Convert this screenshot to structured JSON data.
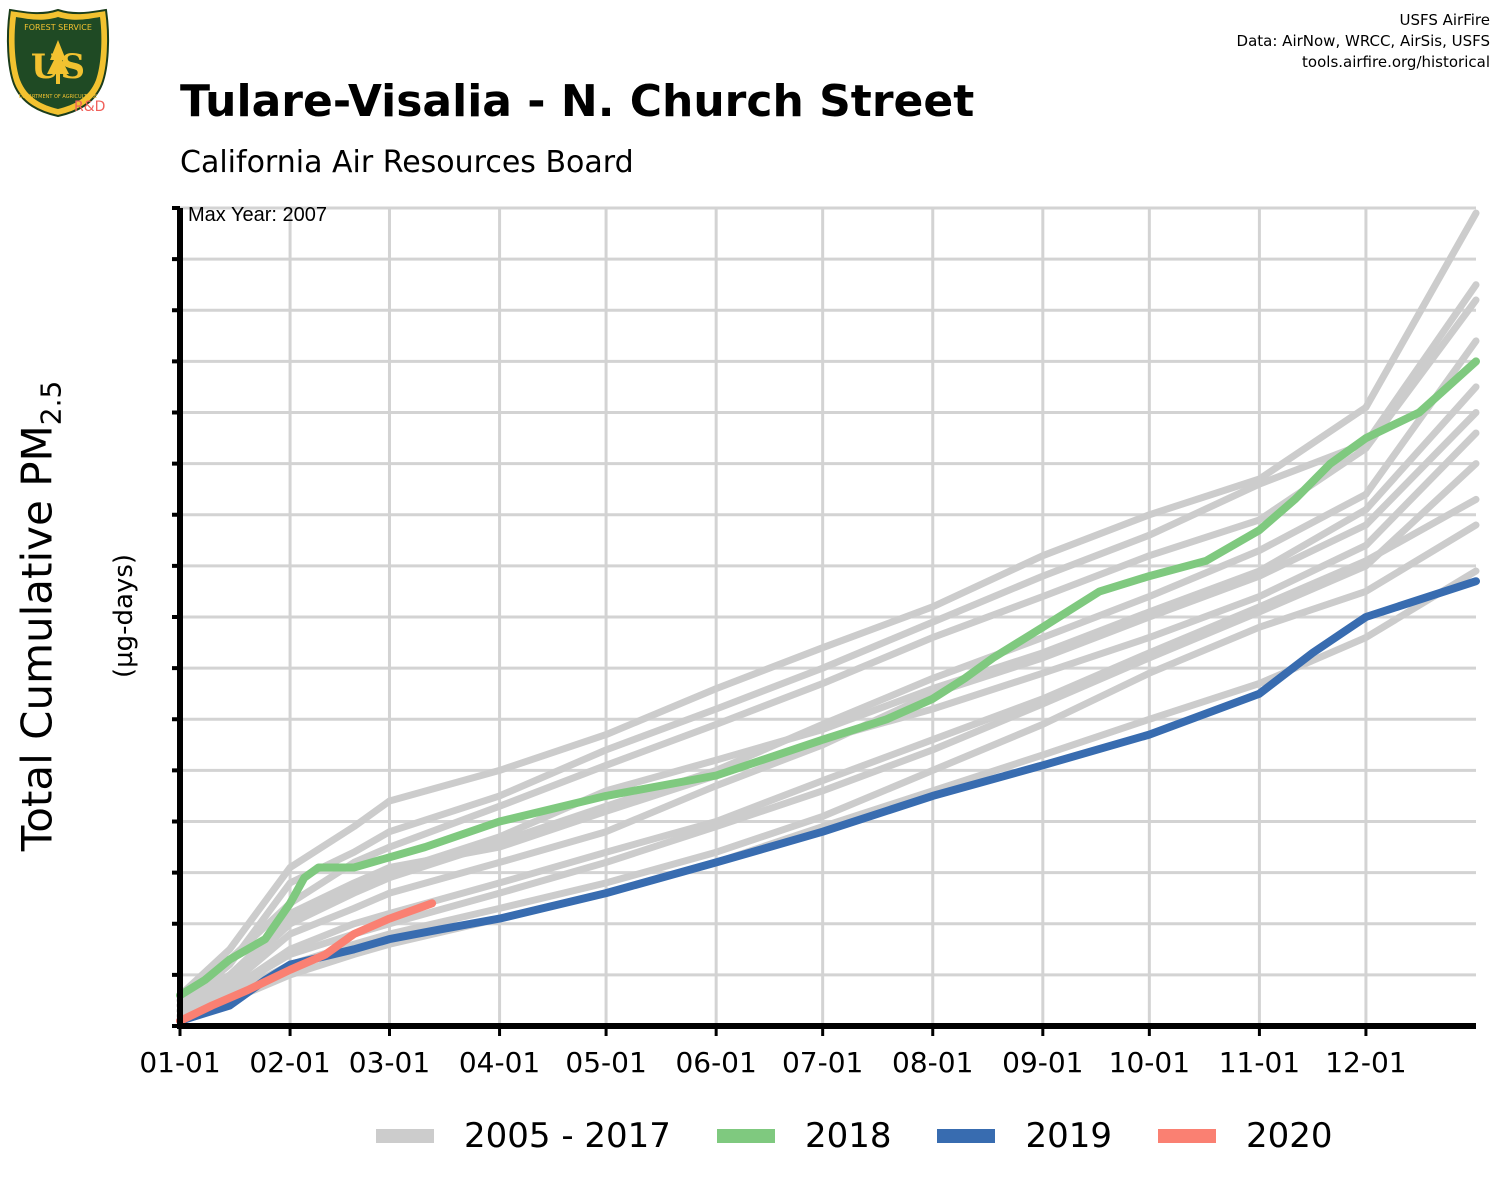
{
  "header": {
    "title": "Tulare-Visalia - N. Church Street",
    "subtitle": "California Air Resources Board",
    "credits": [
      "USFS AirFire",
      "Data: AirNow, WRCC, AirSis, USFS",
      "tools.airfire.org/historical"
    ],
    "logo": {
      "icon": "forest-service-shield-icon",
      "text_top": "FOREST SERVICE",
      "text_mid": "US",
      "text_bottom": "DEPARTMENT OF AGRICULTURE",
      "badge": "R&D"
    }
  },
  "colors": {
    "history": "#cccccc",
    "y2018": "#7fc97f",
    "y2019": "#386cb0",
    "y2020": "#fa8072",
    "grid": "#d3d3d3",
    "axis": "#000000"
  },
  "chart_data": {
    "type": "line",
    "title": "Tulare-Visalia - N. Church Street",
    "subtitle": "California Air Resources Board",
    "ylabel": "Total Cumulative PM",
    "ylabel_sub": "2.5",
    "yunit": "(µg-days)",
    "annotation": "Max Year: 2007",
    "x_ticks": [
      "01-01",
      "02-01",
      "03-01",
      "04-01",
      "05-01",
      "06-01",
      "07-01",
      "08-01",
      "09-01",
      "10-01",
      "11-01",
      "12-01"
    ],
    "x_tick_days": [
      1,
      32,
      60,
      91,
      121,
      152,
      182,
      213,
      244,
      274,
      305,
      335
    ],
    "xlim": [
      1,
      366
    ],
    "ylim": [
      0,
      16
    ],
    "y_tick_count": 17,
    "y_tick_labels_shown": false,
    "grid": true,
    "legend_position": "bottom",
    "legend": [
      "2005 - 2017",
      "2018",
      "2019",
      "2020"
    ],
    "series": [
      {
        "name": "2005 - 2017",
        "group": "history",
        "x": [
          1,
          15,
          32,
          50,
          60,
          91,
          121,
          152,
          182,
          213,
          244,
          274,
          305,
          335,
          366
        ],
        "y": [
          0.6,
          1.5,
          3.1,
          3.9,
          4.4,
          5.0,
          5.7,
          6.6,
          7.4,
          8.2,
          9.2,
          10.0,
          10.7,
          12.1,
          15.9
        ]
      },
      {
        "name": "2005 - 2017",
        "group": "history",
        "x": [
          1,
          15,
          32,
          50,
          60,
          91,
          121,
          152,
          182,
          213,
          244,
          274,
          305,
          335,
          366
        ],
        "y": [
          0.4,
          1.2,
          2.8,
          3.4,
          3.8,
          4.5,
          5.4,
          6.2,
          7.0,
          7.9,
          8.8,
          9.6,
          10.6,
          11.4,
          14.5
        ]
      },
      {
        "name": "2005 - 2017",
        "group": "history",
        "x": [
          1,
          15,
          32,
          50,
          60,
          91,
          121,
          152,
          182,
          213,
          244,
          274,
          305,
          335,
          366
        ],
        "y": [
          0.5,
          1.3,
          2.4,
          3.2,
          3.5,
          4.3,
          5.1,
          5.9,
          6.7,
          7.6,
          8.4,
          9.2,
          9.9,
          11.3,
          14.2
        ]
      },
      {
        "name": "2005 - 2017",
        "group": "history",
        "x": [
          1,
          15,
          32,
          50,
          60,
          91,
          121,
          152,
          182,
          213,
          244,
          274,
          305,
          335,
          366
        ],
        "y": [
          0.3,
          0.9,
          2.0,
          2.6,
          2.9,
          3.6,
          4.3,
          5.0,
          5.9,
          6.8,
          7.6,
          8.4,
          9.3,
          10.4,
          13.4
        ]
      },
      {
        "name": "2005 - 2017",
        "group": "history",
        "x": [
          1,
          15,
          32,
          50,
          60,
          91,
          121,
          152,
          182,
          213,
          244,
          274,
          305,
          335,
          366
        ],
        "y": [
          0.4,
          1.0,
          2.1,
          2.7,
          3.0,
          3.7,
          4.6,
          5.2,
          5.8,
          6.6,
          7.3,
          8.1,
          8.9,
          10.1,
          12.5
        ]
      },
      {
        "name": "2005 - 2017",
        "group": "history",
        "x": [
          1,
          15,
          32,
          50,
          60,
          91,
          121,
          152,
          182,
          213,
          244,
          274,
          305,
          335,
          366
        ],
        "y": [
          0.2,
          0.8,
          1.8,
          2.3,
          2.6,
          3.2,
          3.8,
          4.7,
          5.5,
          6.5,
          7.2,
          8.0,
          8.8,
          9.8,
          12.0
        ]
      },
      {
        "name": "2005 - 2017",
        "group": "history",
        "x": [
          1,
          15,
          32,
          50,
          60,
          91,
          121,
          152,
          182,
          213,
          244,
          274,
          305,
          335,
          366
        ],
        "y": [
          0.3,
          0.9,
          2.2,
          2.8,
          3.1,
          3.5,
          4.2,
          4.9,
          5.6,
          6.2,
          6.9,
          7.6,
          8.4,
          9.4,
          11.6
        ]
      },
      {
        "name": "2005 - 2017",
        "group": "history",
        "x": [
          1,
          15,
          32,
          50,
          60,
          91,
          121,
          152,
          182,
          213,
          244,
          274,
          305,
          335,
          366
        ],
        "y": [
          0.2,
          0.7,
          1.4,
          1.8,
          2.0,
          2.6,
          3.2,
          3.9,
          4.6,
          5.4,
          6.3,
          7.2,
          8.1,
          9.0,
          11.0
        ]
      },
      {
        "name": "2005 - 2017",
        "group": "history",
        "x": [
          1,
          15,
          32,
          50,
          60,
          91,
          121,
          152,
          182,
          213,
          244,
          274,
          305,
          335,
          366
        ],
        "y": [
          0.2,
          0.6,
          1.2,
          1.6,
          1.8,
          2.3,
          2.8,
          3.4,
          4.1,
          5.0,
          5.9,
          6.9,
          7.8,
          8.5,
          9.8
        ]
      },
      {
        "name": "2005 - 2017",
        "group": "history",
        "x": [
          1,
          15,
          32,
          50,
          60,
          91,
          121,
          152,
          182,
          213,
          244,
          274,
          305,
          335,
          366
        ],
        "y": [
          0.1,
          0.5,
          1.0,
          1.4,
          1.6,
          2.1,
          2.6,
          3.2,
          3.9,
          4.6,
          5.3,
          6.0,
          6.7,
          7.6,
          8.9
        ]
      },
      {
        "name": "2005 - 2017",
        "group": "history",
        "x": [
          1,
          15,
          32,
          50,
          60,
          91,
          121,
          152,
          182,
          213,
          244,
          274,
          305,
          335,
          366
        ],
        "y": [
          0.2,
          0.7,
          1.5,
          2.0,
          2.2,
          2.8,
          3.4,
          4.0,
          4.8,
          5.6,
          6.4,
          7.3,
          8.2,
          9.1,
          10.3
        ]
      },
      {
        "name": "2018",
        "group": "y2018",
        "x": [
          1,
          8,
          15,
          25,
          32,
          36,
          40,
          50,
          60,
          70,
          91,
          121,
          152,
          182,
          200,
          213,
          222,
          230,
          244,
          260,
          274,
          290,
          305,
          315,
          325,
          335,
          350,
          366
        ],
        "y": [
          0.6,
          0.9,
          1.3,
          1.7,
          2.4,
          2.9,
          3.1,
          3.1,
          3.3,
          3.5,
          4.0,
          4.5,
          4.9,
          5.6,
          6.0,
          6.4,
          6.8,
          7.2,
          7.8,
          8.5,
          8.8,
          9.1,
          9.7,
          10.3,
          11.0,
          11.5,
          12.0,
          13.0
        ]
      },
      {
        "name": "2019",
        "group": "y2019",
        "x": [
          1,
          15,
          25,
          32,
          50,
          60,
          75,
          91,
          121,
          152,
          182,
          213,
          244,
          274,
          305,
          320,
          335,
          366
        ],
        "y": [
          0.1,
          0.4,
          0.9,
          1.2,
          1.5,
          1.7,
          1.9,
          2.1,
          2.6,
          3.2,
          3.8,
          4.5,
          5.1,
          5.7,
          6.5,
          7.3,
          8.0,
          8.7
        ]
      },
      {
        "name": "2020",
        "group": "y2020",
        "x": [
          1,
          10,
          20,
          32,
          42,
          50,
          60,
          72
        ],
        "y": [
          0.1,
          0.4,
          0.7,
          1.1,
          1.4,
          1.8,
          2.1,
          2.4
        ]
      }
    ]
  }
}
